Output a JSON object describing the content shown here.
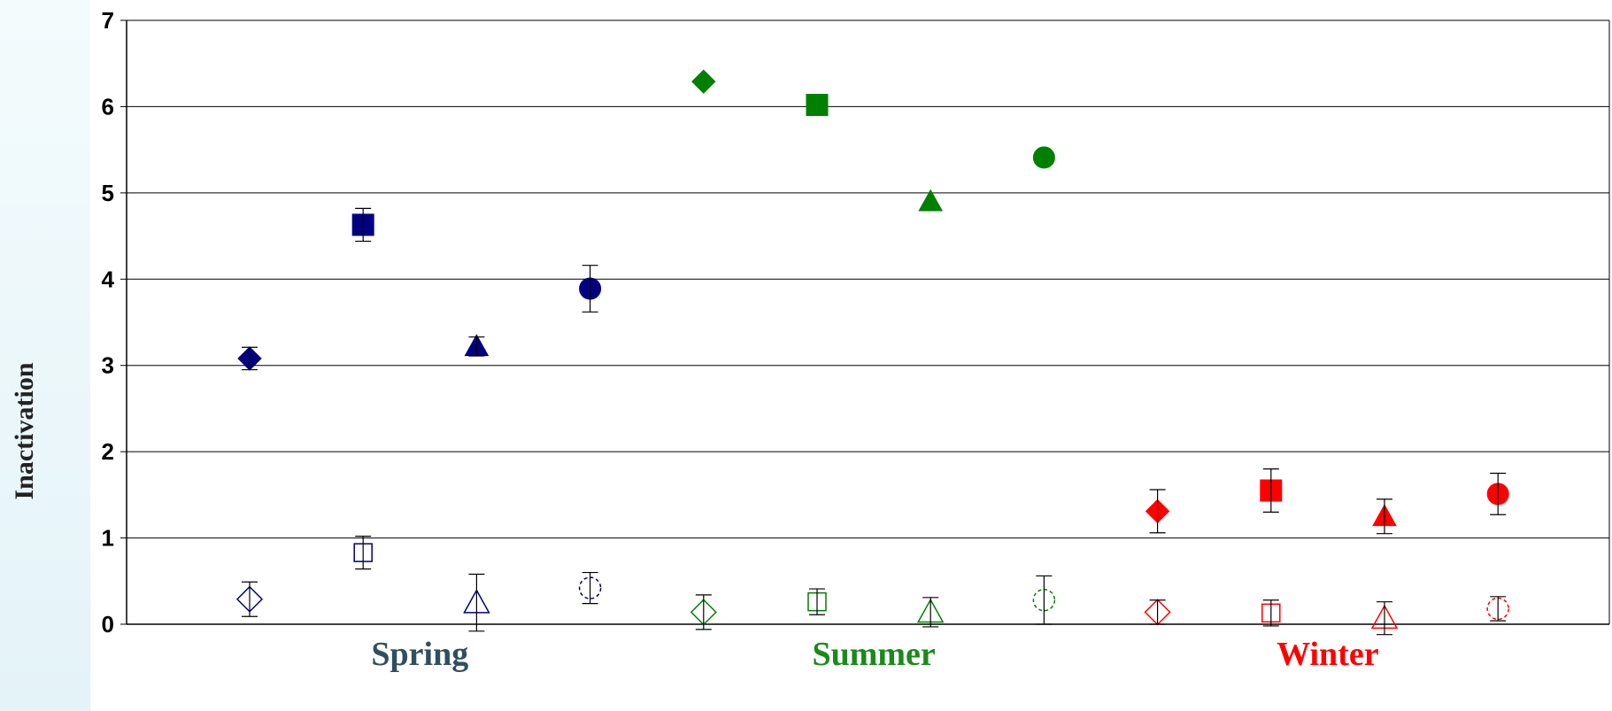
{
  "chart_data": {
    "type": "scatter",
    "title": "",
    "ylabel": "Inactivation",
    "ylim": [
      0,
      7
    ],
    "yticks": [
      0,
      1,
      2,
      3,
      4,
      5,
      6,
      7
    ],
    "grid": true,
    "x_group_labels": [
      {
        "label": "Spring",
        "color": "#2f4f5f"
      },
      {
        "label": "Summer",
        "color": "#1a8a1a"
      },
      {
        "label": "Winter",
        "color": "#ff0000"
      }
    ],
    "colors": {
      "Spring": "#000080",
      "Summer": "#008000",
      "Winter": "#ff0000"
    },
    "points": [
      {
        "group": "Spring",
        "x": 1,
        "marker": "diamond",
        "filled": true,
        "y": 3.08,
        "err": 0.13
      },
      {
        "group": "Spring",
        "x": 2,
        "marker": "square",
        "filled": true,
        "y": 4.63,
        "err": 0.19
      },
      {
        "group": "Spring",
        "x": 3,
        "marker": "triangle",
        "filled": true,
        "y": 3.22,
        "err": 0.11
      },
      {
        "group": "Spring",
        "x": 4,
        "marker": "circle",
        "filled": true,
        "y": 3.89,
        "err": 0.27
      },
      {
        "group": "Summer",
        "x": 5,
        "marker": "diamond",
        "filled": true,
        "y": 6.29,
        "err": 0.0
      },
      {
        "group": "Summer",
        "x": 6,
        "marker": "square",
        "filled": true,
        "y": 6.02,
        "err": 0.0
      },
      {
        "group": "Summer",
        "x": 7,
        "marker": "triangle",
        "filled": true,
        "y": 4.9,
        "err": 0.0
      },
      {
        "group": "Summer",
        "x": 8,
        "marker": "circle",
        "filled": true,
        "y": 5.41,
        "err": 0.0
      },
      {
        "group": "Winter",
        "x": 9,
        "marker": "diamond",
        "filled": true,
        "y": 1.31,
        "err": 0.25
      },
      {
        "group": "Winter",
        "x": 10,
        "marker": "square",
        "filled": true,
        "y": 1.55,
        "err": 0.25
      },
      {
        "group": "Winter",
        "x": 11,
        "marker": "triangle",
        "filled": true,
        "y": 1.25,
        "err": 0.2
      },
      {
        "group": "Winter",
        "x": 12,
        "marker": "circle",
        "filled": true,
        "y": 1.51,
        "err": 0.24
      },
      {
        "group": "Spring",
        "x": 1,
        "marker": "diamond",
        "filled": false,
        "y": 0.29,
        "err": 0.2
      },
      {
        "group": "Spring",
        "x": 2,
        "marker": "square",
        "filled": false,
        "y": 0.83,
        "err": 0.19
      },
      {
        "group": "Spring",
        "x": 3,
        "marker": "triangle",
        "filled": false,
        "y": 0.25,
        "err": 0.33
      },
      {
        "group": "Spring",
        "x": 4,
        "marker": "circle",
        "filled": false,
        "y": 0.42,
        "err": 0.18
      },
      {
        "group": "Summer",
        "x": 5,
        "marker": "diamond",
        "filled": false,
        "y": 0.14,
        "err": 0.2
      },
      {
        "group": "Summer",
        "x": 6,
        "marker": "square",
        "filled": false,
        "y": 0.26,
        "err": 0.15
      },
      {
        "group": "Summer",
        "x": 7,
        "marker": "triangle",
        "filled": false,
        "y": 0.14,
        "err": 0.17
      },
      {
        "group": "Summer",
        "x": 8,
        "marker": "circle",
        "filled": false,
        "y": 0.28,
        "err": 0.28
      },
      {
        "group": "Winter",
        "x": 9,
        "marker": "diamond",
        "filled": false,
        "y": 0.14,
        "err": 0.14
      },
      {
        "group": "Winter",
        "x": 10,
        "marker": "square",
        "filled": false,
        "y": 0.13,
        "err": 0.15
      },
      {
        "group": "Winter",
        "x": 11,
        "marker": "triangle",
        "filled": false,
        "y": 0.07,
        "err": 0.19
      },
      {
        "group": "Winter",
        "x": 12,
        "marker": "circle",
        "filled": false,
        "y": 0.18,
        "err": 0.14
      }
    ]
  }
}
